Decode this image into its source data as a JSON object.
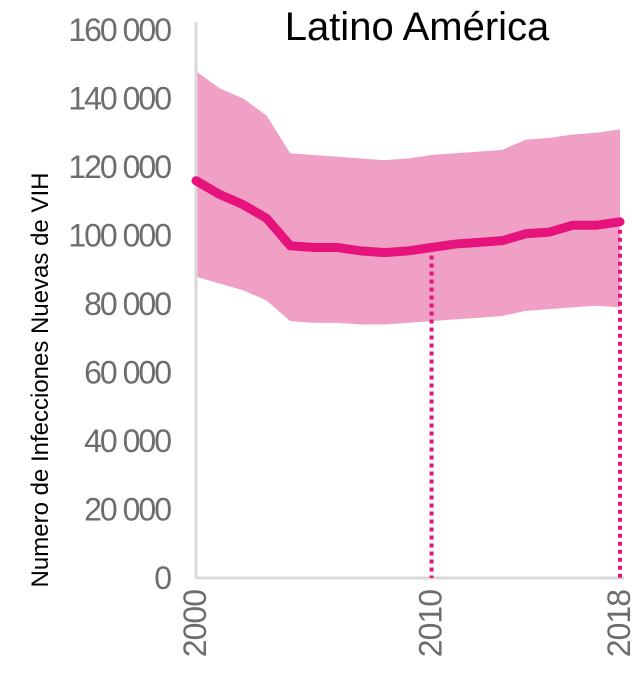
{
  "chart_data": {
    "type": "area",
    "title": "Latino América",
    "ylabel": "Numero de Infecciones Nuevas de VIH",
    "xlabel": "",
    "xlim": [
      2000,
      2018
    ],
    "ylim": [
      0,
      160000
    ],
    "yticks": [
      0,
      20000,
      40000,
      60000,
      80000,
      100000,
      120000,
      140000,
      160000
    ],
    "ytick_labels": [
      "0",
      "20 000",
      "40 000",
      "60 000",
      "80 000",
      "100 000",
      "120 000",
      "140 000",
      "160 000"
    ],
    "xticks": [
      2000,
      2010,
      2018
    ],
    "xtick_labels": [
      "2000",
      "2010",
      "2018"
    ],
    "x": [
      2000,
      2001,
      2002,
      2003,
      2004,
      2005,
      2006,
      2007,
      2008,
      2009,
      2010,
      2011,
      2012,
      2013,
      2014,
      2015,
      2016,
      2017,
      2018
    ],
    "series": [
      {
        "values": [
          116000,
          112000,
          109000,
          105000,
          97000,
          96500,
          96500,
          95500,
          95000,
          95500,
          96500,
          97500,
          98000,
          98500,
          100500,
          101000,
          103000,
          103000,
          104000
        ],
        "lower": [
          88000,
          86000,
          84000,
          81000,
          75000,
          74500,
          74500,
          74000,
          74000,
          74500,
          75000,
          75500,
          76000,
          76500,
          78000,
          78500,
          79000,
          79500,
          79000
        ],
        "upper": [
          148000,
          143000,
          140000,
          135000,
          124000,
          123500,
          123000,
          122500,
          122000,
          122500,
          123500,
          124000,
          124500,
          125000,
          128000,
          128500,
          129500,
          130000,
          131000
        ]
      }
    ],
    "reference_lines": [
      {
        "x": 2010,
        "y": 96500
      },
      {
        "x": 2018,
        "y": 104000
      }
    ],
    "colors": {
      "line": "#e6137c",
      "band": "#f0a0c4",
      "axis": "#d9d9d9",
      "tick_label": "#6d6d6d"
    },
    "grid": false,
    "legend": "none"
  }
}
